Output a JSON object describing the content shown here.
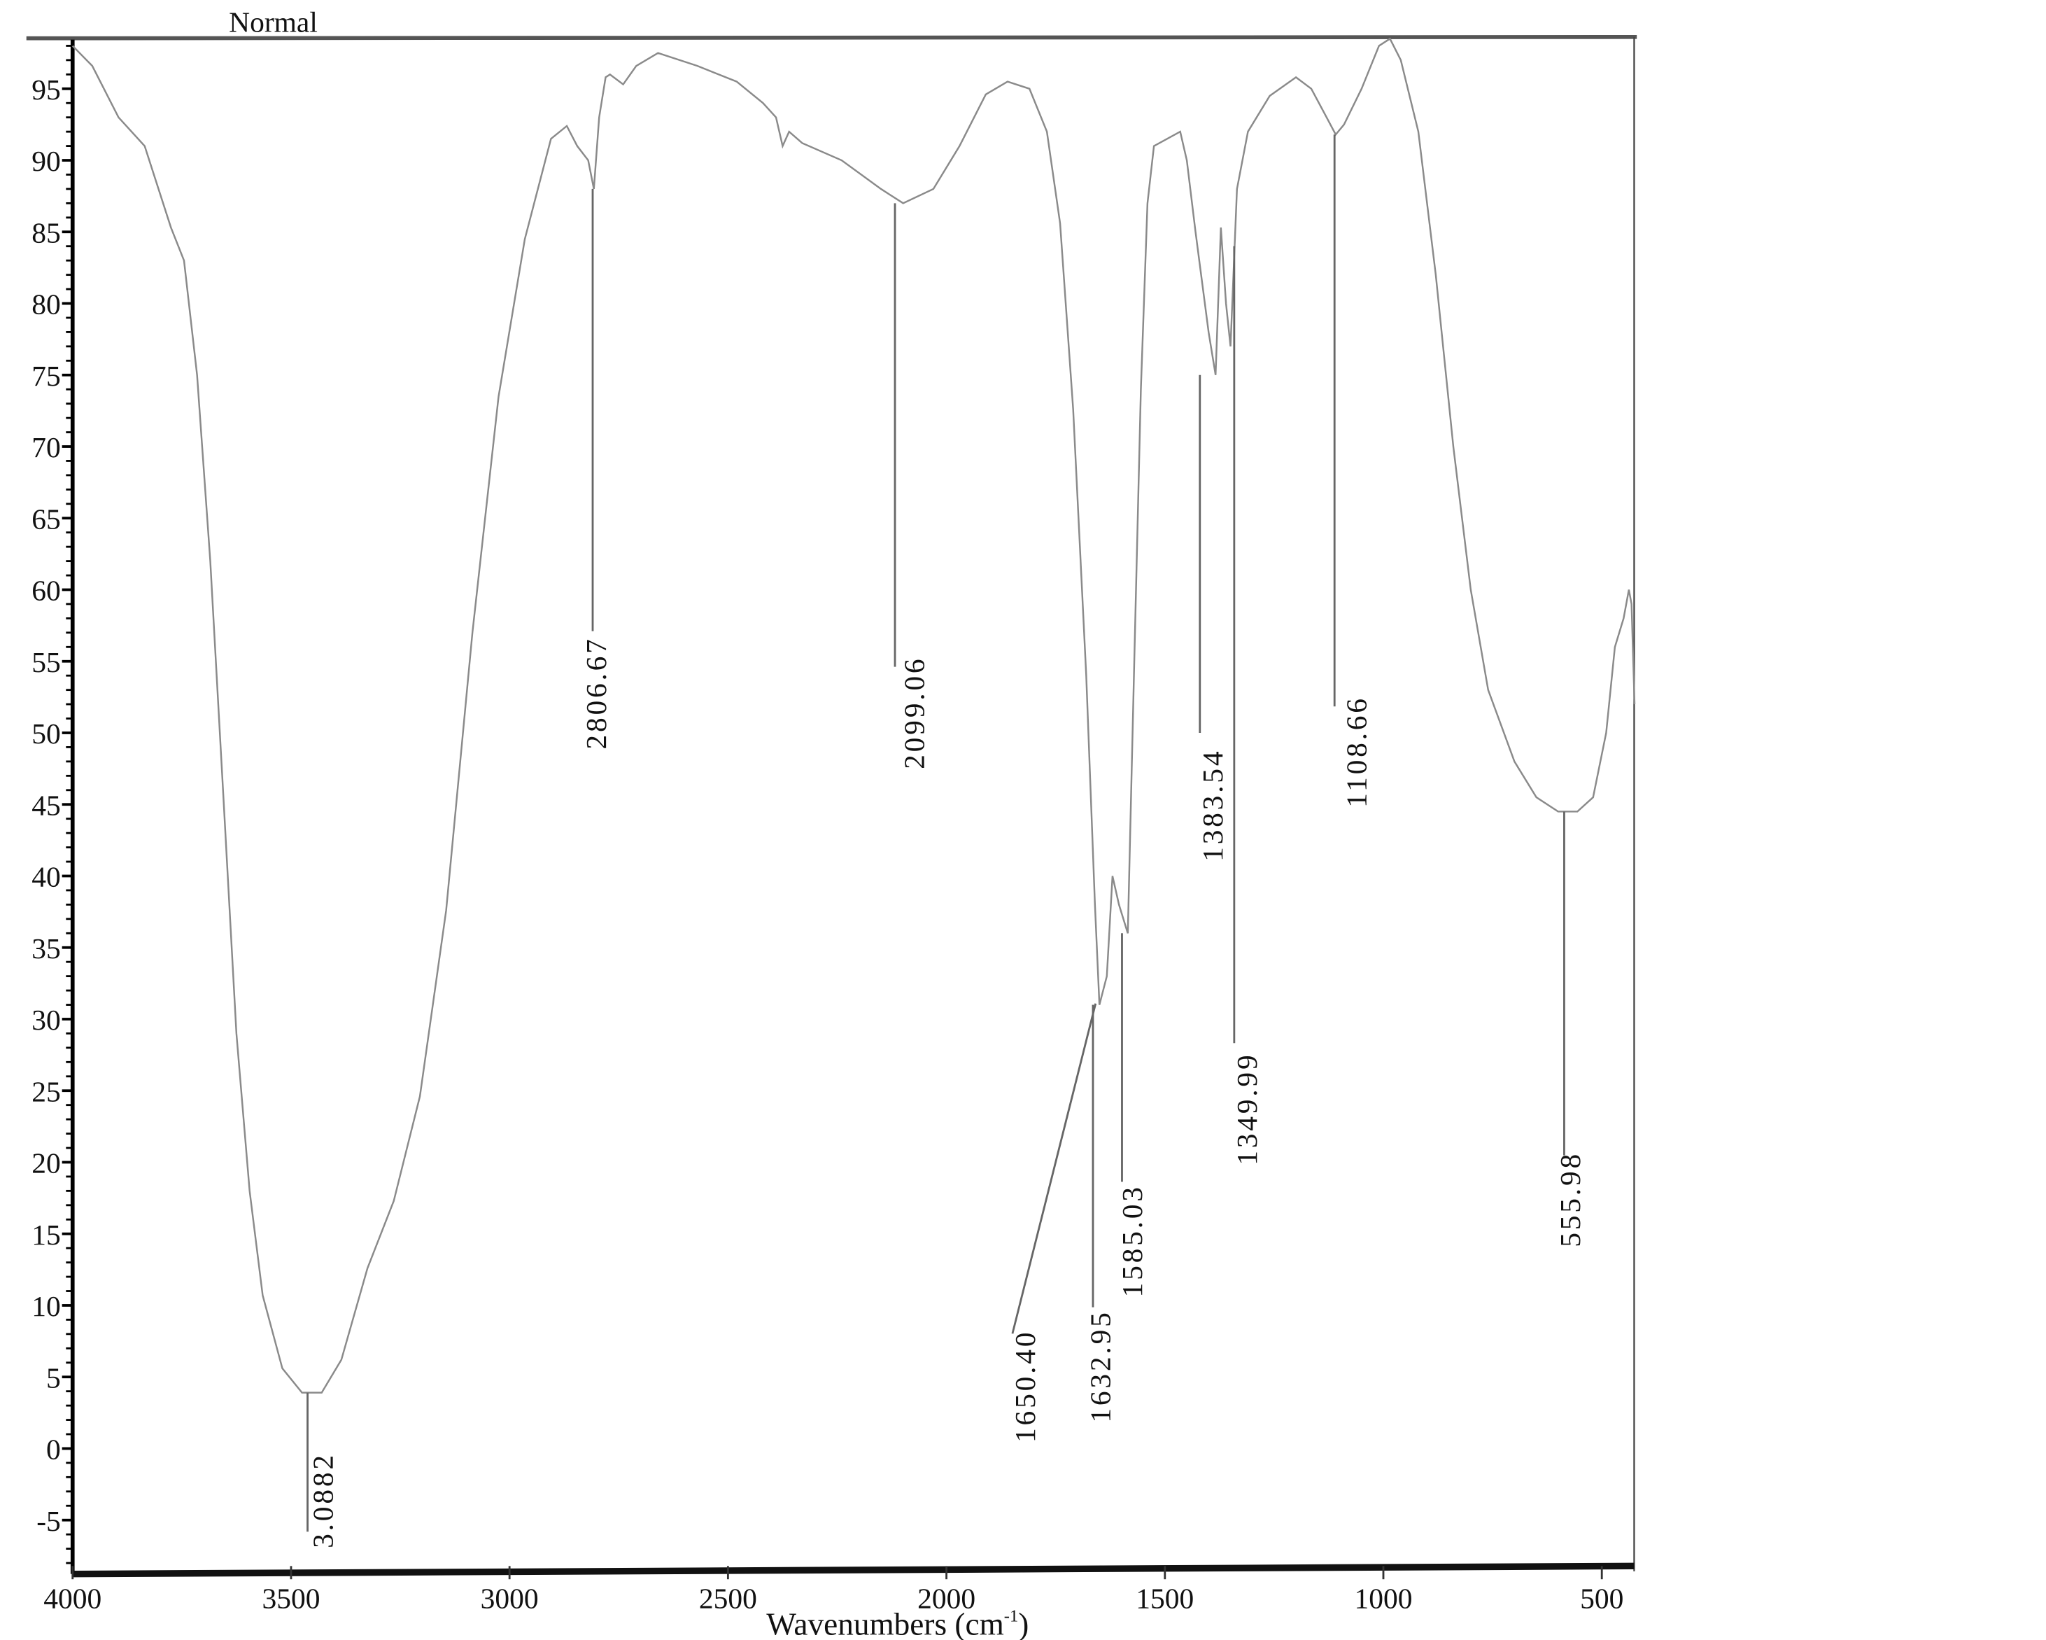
{
  "chart_data": {
    "type": "line",
    "title": "Normal",
    "xlabel": "Wavenumbers (cm",
    "xlabel_sup": "-1",
    "xlabel_close": ")",
    "ylabel": "",
    "xlim": [
      4000,
      425
    ],
    "ylim": [
      -8.6,
      98.6
    ],
    "x_reversed": true,
    "grid": false,
    "line_color": "#8a8a8a",
    "x_ticks": [
      4000,
      3500,
      3000,
      2500,
      2000,
      1500,
      1000,
      500
    ],
    "y_ticks": [
      95,
      90,
      85,
      80,
      75,
      70,
      65,
      60,
      55,
      50,
      45,
      40,
      35,
      30,
      25,
      20,
      15,
      10,
      5,
      0,
      -5
    ],
    "series": [
      {
        "x": [
          4000,
          3955,
          3895,
          3835,
          3775,
          3745,
          3715,
          3685,
          3655,
          3625,
          3595,
          3565,
          3520,
          3475,
          3430,
          3385,
          3325,
          3265,
          3205,
          3145,
          3085,
          3025,
          2965,
          2905,
          2869,
          2845,
          2820,
          2807,
          2795,
          2780,
          2770,
          2740,
          2710,
          2660,
          2570,
          2480,
          2420,
          2390,
          2375,
          2360,
          2330,
          2240,
          2150,
          2099,
          2030,
          1970,
          1910,
          1860,
          1810,
          1770,
          1740,
          1710,
          1680,
          1660,
          1650,
          1633,
          1620,
          1605,
          1585,
          1570,
          1555,
          1540,
          1525,
          1495,
          1465,
          1450,
          1430,
          1400,
          1384,
          1372,
          1360,
          1350,
          1335,
          1310,
          1260,
          1200,
          1165,
          1130,
          1109,
          1090,
          1050,
          1010,
          985,
          960,
          920,
          880,
          840,
          800,
          760,
          700,
          650,
          600,
          556,
          520,
          490,
          470,
          450,
          438,
          432,
          425
        ],
        "y": [
          98,
          96.6,
          93,
          91,
          85.3,
          83,
          75,
          62,
          45.6,
          29,
          18,
          10.7,
          5.6,
          3.9,
          3.9,
          6.2,
          12.6,
          17.3,
          24.6,
          37.6,
          57,
          73.5,
          84.5,
          91.5,
          92.4,
          91,
          90,
          88,
          93,
          95.8,
          96,
          95.3,
          96.6,
          97.5,
          96.6,
          95.5,
          94,
          93,
          91,
          92,
          91.2,
          90,
          88,
          87,
          88,
          91,
          94.6,
          95.5,
          95,
          92,
          85.6,
          72.6,
          54,
          38,
          31,
          33,
          40,
          38,
          36,
          55,
          74,
          87,
          91,
          91.5,
          92,
          90,
          85,
          78,
          75,
          85.3,
          80,
          77,
          88,
          92,
          94.5,
          95.8,
          95,
          93,
          91.8,
          92.5,
          95,
          98,
          98.5,
          97,
          92,
          82,
          70,
          60,
          53,
          48,
          45.5,
          44.5,
          44.5,
          45.5,
          50,
          56,
          58,
          60,
          59,
          52
        ]
      }
    ],
    "peak_labels": [
      {
        "label": "3.0882",
        "x": 3462,
        "y": 3.9
      },
      {
        "label": "2806.67",
        "x": 2806.67,
        "y": 88
      },
      {
        "label": "2099.06",
        "x": 2099.06,
        "y": 87
      },
      {
        "label": "1650.40",
        "x": 1650.4,
        "y": 31
      },
      {
        "label": "1632.95",
        "x": 1632.95,
        "y": 31
      },
      {
        "label": "1585.03",
        "x": 1585.03,
        "y": 36
      },
      {
        "label": "1383.54",
        "x": 1383.54,
        "y": 75
      },
      {
        "label": "1349.99",
        "x": 1349.99,
        "y": 84
      },
      {
        "label": "1108.66",
        "x": 1108.66,
        "y": 91.8
      },
      {
        "label": "555.98",
        "x": 555.98,
        "y": 44.5
      }
    ]
  }
}
